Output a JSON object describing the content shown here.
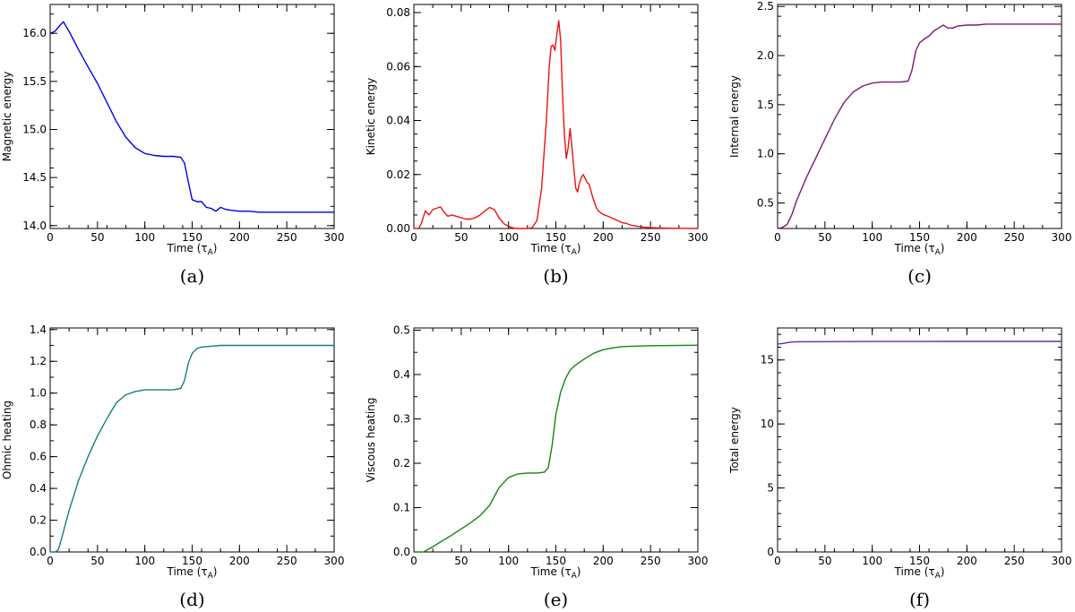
{
  "chart_data": [
    {
      "type": "line",
      "caption": "(a)",
      "xlabel": "Time (τ",
      "xlabel_sub": "A",
      "xlabel_close": ")",
      "ylabel": "Magnetic energy",
      "xlim": [
        0,
        300
      ],
      "ylim": [
        13.97,
        16.3
      ],
      "xticks": [
        0,
        50,
        100,
        150,
        200,
        250,
        300
      ],
      "xtick_labels": [
        "0",
        "50",
        "100",
        "150",
        "200",
        "250",
        "300"
      ],
      "yticks": [
        14.0,
        14.5,
        15.0,
        15.5,
        16.0
      ],
      "ytick_labels": [
        "14.0",
        "14.5",
        "15.0",
        "15.5",
        "16.0"
      ],
      "color": "#0000ee",
      "series": [
        {
          "name": "Magnetic energy",
          "x": [
            0,
            5,
            10,
            14,
            20,
            30,
            40,
            50,
            60,
            70,
            80,
            90,
            100,
            110,
            120,
            130,
            138,
            142,
            146,
            150,
            155,
            160,
            165,
            170,
            175,
            180,
            185,
            190,
            200,
            210,
            220,
            250,
            300
          ],
          "y": [
            16.0,
            16.02,
            16.08,
            16.12,
            16.02,
            15.83,
            15.65,
            15.48,
            15.28,
            15.08,
            14.92,
            14.81,
            14.75,
            14.73,
            14.72,
            14.72,
            14.71,
            14.65,
            14.45,
            14.27,
            14.25,
            14.25,
            14.19,
            14.18,
            14.15,
            14.19,
            14.17,
            14.16,
            14.15,
            14.15,
            14.14,
            14.14,
            14.14
          ]
        }
      ]
    },
    {
      "type": "line",
      "caption": "(b)",
      "xlabel": "Time (τ",
      "xlabel_sub": "A",
      "xlabel_close": ")",
      "ylabel": "Kinetic energy",
      "xlim": [
        0,
        300
      ],
      "ylim": [
        0,
        0.083
      ],
      "xticks": [
        0,
        50,
        100,
        150,
        200,
        250,
        300
      ],
      "xtick_labels": [
        "0",
        "50",
        "100",
        "150",
        "200",
        "250",
        "300"
      ],
      "yticks": [
        0,
        0.02,
        0.04,
        0.06,
        0.08
      ],
      "ytick_labels": [
        "0.00",
        "0.02",
        "0.04",
        "0.06",
        "0.08"
      ],
      "color": "#ee1111",
      "series": [
        {
          "name": "Kinetic energy",
          "x": [
            0,
            5,
            8,
            12,
            16,
            20,
            24,
            28,
            32,
            36,
            40,
            45,
            50,
            55,
            60,
            65,
            70,
            75,
            80,
            85,
            90,
            95,
            100,
            105,
            110,
            115,
            120,
            125,
            130,
            135,
            140,
            143,
            145,
            147,
            149,
            151,
            153,
            155,
            157,
            159,
            161,
            163,
            165,
            167,
            169,
            171,
            173,
            175,
            177,
            179,
            181,
            183,
            185,
            187,
            189,
            191,
            193,
            195,
            200,
            205,
            210,
            215,
            220,
            225,
            230,
            235,
            240,
            250,
            260,
            270,
            300
          ],
          "y": [
            0,
            0,
            0.002,
            0.0065,
            0.005,
            0.007,
            0.0075,
            0.008,
            0.006,
            0.0045,
            0.005,
            0.0045,
            0.004,
            0.0035,
            0.0035,
            0.004,
            0.005,
            0.0065,
            0.0078,
            0.007,
            0.004,
            0.0018,
            0.0008,
            0.0002,
            0,
            0,
            0,
            0.0003,
            0.003,
            0.015,
            0.04,
            0.06,
            0.0675,
            0.068,
            0.066,
            0.072,
            0.077,
            0.07,
            0.05,
            0.035,
            0.026,
            0.03,
            0.037,
            0.03,
            0.022,
            0.015,
            0.0135,
            0.017,
            0.019,
            0.02,
            0.0185,
            0.017,
            0.0165,
            0.014,
            0.0115,
            0.0095,
            0.0075,
            0.0065,
            0.0052,
            0.0045,
            0.0038,
            0.003,
            0.0022,
            0.0018,
            0.0012,
            0.0009,
            0.0006,
            0.0003,
            0.0002,
            0.0001,
            0
          ]
        }
      ]
    },
    {
      "type": "line",
      "caption": "(c)",
      "xlabel": "Time (τ",
      "xlabel_sub": "A",
      "xlabel_close": ")",
      "ylabel": "Internal energy",
      "xlim": [
        0,
        300
      ],
      "ylim": [
        0.24,
        2.52
      ],
      "xticks": [
        0,
        50,
        100,
        150,
        200,
        250,
        300
      ],
      "xtick_labels": [
        "0",
        "50",
        "100",
        "150",
        "200",
        "250",
        "300"
      ],
      "yticks": [
        0.5,
        1.0,
        1.5,
        2.0,
        2.5
      ],
      "ytick_labels": [
        "0.5",
        "1.0",
        "1.5",
        "2.0",
        "2.5"
      ],
      "color": "#7a1a7a",
      "series": [
        {
          "name": "Internal energy",
          "x": [
            0,
            5,
            10,
            15,
            20,
            30,
            40,
            50,
            60,
            70,
            80,
            90,
            100,
            110,
            120,
            130,
            138,
            142,
            146,
            150,
            155,
            160,
            165,
            170,
            175,
            180,
            185,
            190,
            200,
            210,
            220,
            250,
            300
          ],
          "y": [
            0.24,
            0.25,
            0.28,
            0.38,
            0.52,
            0.75,
            0.95,
            1.15,
            1.35,
            1.52,
            1.63,
            1.69,
            1.72,
            1.73,
            1.73,
            1.73,
            1.74,
            1.85,
            2.05,
            2.13,
            2.17,
            2.2,
            2.25,
            2.28,
            2.31,
            2.28,
            2.28,
            2.3,
            2.31,
            2.31,
            2.32,
            2.32,
            2.32
          ]
        }
      ]
    },
    {
      "type": "line",
      "caption": "(d)",
      "xlabel": "Time (τ",
      "xlabel_sub": "A",
      "xlabel_close": ")",
      "ylabel": "Ohmic heating",
      "xlim": [
        0,
        300
      ],
      "ylim": [
        0,
        1.41
      ],
      "xticks": [
        0,
        50,
        100,
        150,
        200,
        250,
        300
      ],
      "xtick_labels": [
        "0",
        "50",
        "100",
        "150",
        "200",
        "250",
        "300"
      ],
      "yticks": [
        0,
        0.2,
        0.4,
        0.6,
        0.8,
        1.0,
        1.2,
        1.4
      ],
      "ytick_labels": [
        "0.0",
        "0.2",
        "0.4",
        "0.6",
        "0.8",
        "1.0",
        "1.2",
        "1.4"
      ],
      "color": "#108080",
      "series": [
        {
          "name": "Ohmic heating",
          "x": [
            0,
            5,
            8,
            10,
            15,
            20,
            30,
            40,
            50,
            60,
            70,
            80,
            90,
            100,
            110,
            120,
            130,
            138,
            142,
            146,
            150,
            155,
            160,
            170,
            180,
            200,
            250,
            300
          ],
          "y": [
            0,
            0,
            0.01,
            0.04,
            0.15,
            0.26,
            0.45,
            0.6,
            0.73,
            0.84,
            0.94,
            0.99,
            1.01,
            1.02,
            1.02,
            1.02,
            1.02,
            1.03,
            1.08,
            1.19,
            1.25,
            1.28,
            1.29,
            1.295,
            1.3,
            1.3,
            1.3,
            1.3
          ]
        }
      ]
    },
    {
      "type": "line",
      "caption": "(e)",
      "xlabel": "Time (τ",
      "xlabel_sub": "A",
      "xlabel_close": ")",
      "ylabel": "Viscous heating",
      "xlim": [
        0,
        300
      ],
      "ylim": [
        0,
        0.505
      ],
      "xticks": [
        0,
        50,
        100,
        150,
        200,
        250,
        300
      ],
      "xtick_labels": [
        "0",
        "50",
        "100",
        "150",
        "200",
        "250",
        "300"
      ],
      "yticks": [
        0,
        0.1,
        0.2,
        0.3,
        0.4,
        0.5
      ],
      "ytick_labels": [
        "0.0",
        "0.1",
        "0.2",
        "0.3",
        "0.4",
        "0.5"
      ],
      "color": "#118811",
      "series": [
        {
          "name": "Viscous heating",
          "x": [
            0,
            5,
            10,
            12,
            20,
            30,
            40,
            50,
            60,
            70,
            80,
            90,
            100,
            110,
            120,
            130,
            138,
            142,
            146,
            150,
            155,
            160,
            165,
            170,
            180,
            190,
            200,
            210,
            220,
            250,
            300
          ],
          "y": [
            0,
            0,
            0,
            0.002,
            0.012,
            0.025,
            0.038,
            0.052,
            0.066,
            0.082,
            0.105,
            0.145,
            0.168,
            0.176,
            0.178,
            0.178,
            0.18,
            0.19,
            0.24,
            0.31,
            0.36,
            0.39,
            0.41,
            0.42,
            0.435,
            0.448,
            0.456,
            0.46,
            0.463,
            0.465,
            0.466
          ]
        }
      ]
    },
    {
      "type": "line",
      "caption": "(f)",
      "xlabel": "Time (τ",
      "xlabel_sub": "A",
      "xlabel_close": ")",
      "ylabel": "Total energy",
      "xlim": [
        0,
        300
      ],
      "ylim": [
        0,
        17.5
      ],
      "xticks": [
        0,
        50,
        100,
        150,
        200,
        250,
        300
      ],
      "xtick_labels": [
        "0",
        "50",
        "100",
        "150",
        "200",
        "250",
        "300"
      ],
      "yticks": [
        0,
        5,
        10,
        15
      ],
      "ytick_labels": [
        "0",
        "5",
        "10",
        "15"
      ],
      "color": "#6a2a9a",
      "series": [
        {
          "name": "Total energy",
          "x": [
            0,
            5,
            10,
            15,
            20,
            50,
            100,
            150,
            200,
            250,
            300
          ],
          "y": [
            16.25,
            16.28,
            16.35,
            16.4,
            16.42,
            16.43,
            16.44,
            16.44,
            16.45,
            16.45,
            16.45
          ]
        }
      ]
    }
  ]
}
